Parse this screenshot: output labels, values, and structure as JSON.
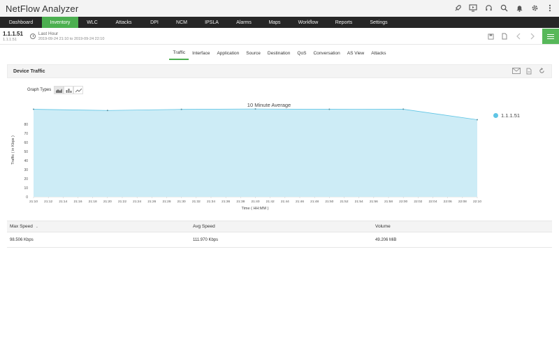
{
  "app": {
    "title": "NetFlow Analyzer"
  },
  "top_icons": [
    "rocket-icon",
    "monitor-icon",
    "headset-icon",
    "search-icon",
    "bell-icon",
    "gear-icon",
    "more-icon"
  ],
  "nav": [
    {
      "label": "Dashboard",
      "active": false
    },
    {
      "label": "Inventory",
      "active": true
    },
    {
      "label": "WLC",
      "active": false
    },
    {
      "label": "Attacks",
      "active": false
    },
    {
      "label": "DPI",
      "active": false
    },
    {
      "label": "NCM",
      "active": false
    },
    {
      "label": "IPSLA",
      "active": false
    },
    {
      "label": "Alarms",
      "active": false
    },
    {
      "label": "Maps",
      "active": false
    },
    {
      "label": "Workflow",
      "active": false
    },
    {
      "label": "Reports",
      "active": false
    },
    {
      "label": "Settings",
      "active": false
    }
  ],
  "device": {
    "ip": "1.1.1.51",
    "sub": "1.1.1.51",
    "time_title": "Last Hour",
    "time_range": "2019-09-24 21:10 to 2019-09-24 22:10"
  },
  "tabs": [
    {
      "label": "Traffic",
      "active": true
    },
    {
      "label": "Interface",
      "active": false
    },
    {
      "label": "Application",
      "active": false
    },
    {
      "label": "Source",
      "active": false
    },
    {
      "label": "Destination",
      "active": false
    },
    {
      "label": "QoS",
      "active": false
    },
    {
      "label": "Conversation",
      "active": false
    },
    {
      "label": "AS View",
      "active": false
    },
    {
      "label": "Attacks",
      "active": false
    }
  ],
  "panel": {
    "title": "Device Traffic"
  },
  "graph_types": {
    "label": "Graph Types"
  },
  "chart_data": {
    "type": "area",
    "title": "10 Minute Average",
    "xlabel": "Time ( HH:MM )",
    "ylabel": "Traffic ( in Kbps )",
    "ylim": [
      0,
      100
    ],
    "yticks": [
      0,
      10,
      20,
      30,
      40,
      50,
      60,
      70,
      80
    ],
    "x": [
      "21:10",
      "21:12",
      "21:14",
      "21:16",
      "21:18",
      "21:20",
      "21:22",
      "21:24",
      "21:26",
      "21:28",
      "21:30",
      "21:32",
      "21:34",
      "21:36",
      "21:38",
      "21:40",
      "21:42",
      "21:44",
      "21:46",
      "21:48",
      "21:50",
      "21:52",
      "21:54",
      "21:56",
      "21:58",
      "22:00",
      "22:02",
      "22:04",
      "22:06",
      "22:08",
      "22:10"
    ],
    "series": [
      {
        "name": "1.1.1.51",
        "color": "#5fc5e5",
        "fill": "#cdecf6",
        "points": [
          {
            "x": "21:10",
            "y": 96.5
          },
          {
            "x": "21:20",
            "y": 95.2
          },
          {
            "x": "21:30",
            "y": 96.4
          },
          {
            "x": "21:40",
            "y": 96.8
          },
          {
            "x": "21:50",
            "y": 96.5
          },
          {
            "x": "22:00",
            "y": 96.6
          },
          {
            "x": "22:10",
            "y": 85.0
          }
        ]
      }
    ],
    "legend": "right",
    "grid": true
  },
  "table": {
    "headers": [
      "Max Speed",
      "Avg Speed",
      "Volume"
    ],
    "sort_indicator": "⌄",
    "rows": [
      [
        "98.506 Kbps",
        "111.970 Kbps",
        "49.206 MiB"
      ]
    ]
  }
}
